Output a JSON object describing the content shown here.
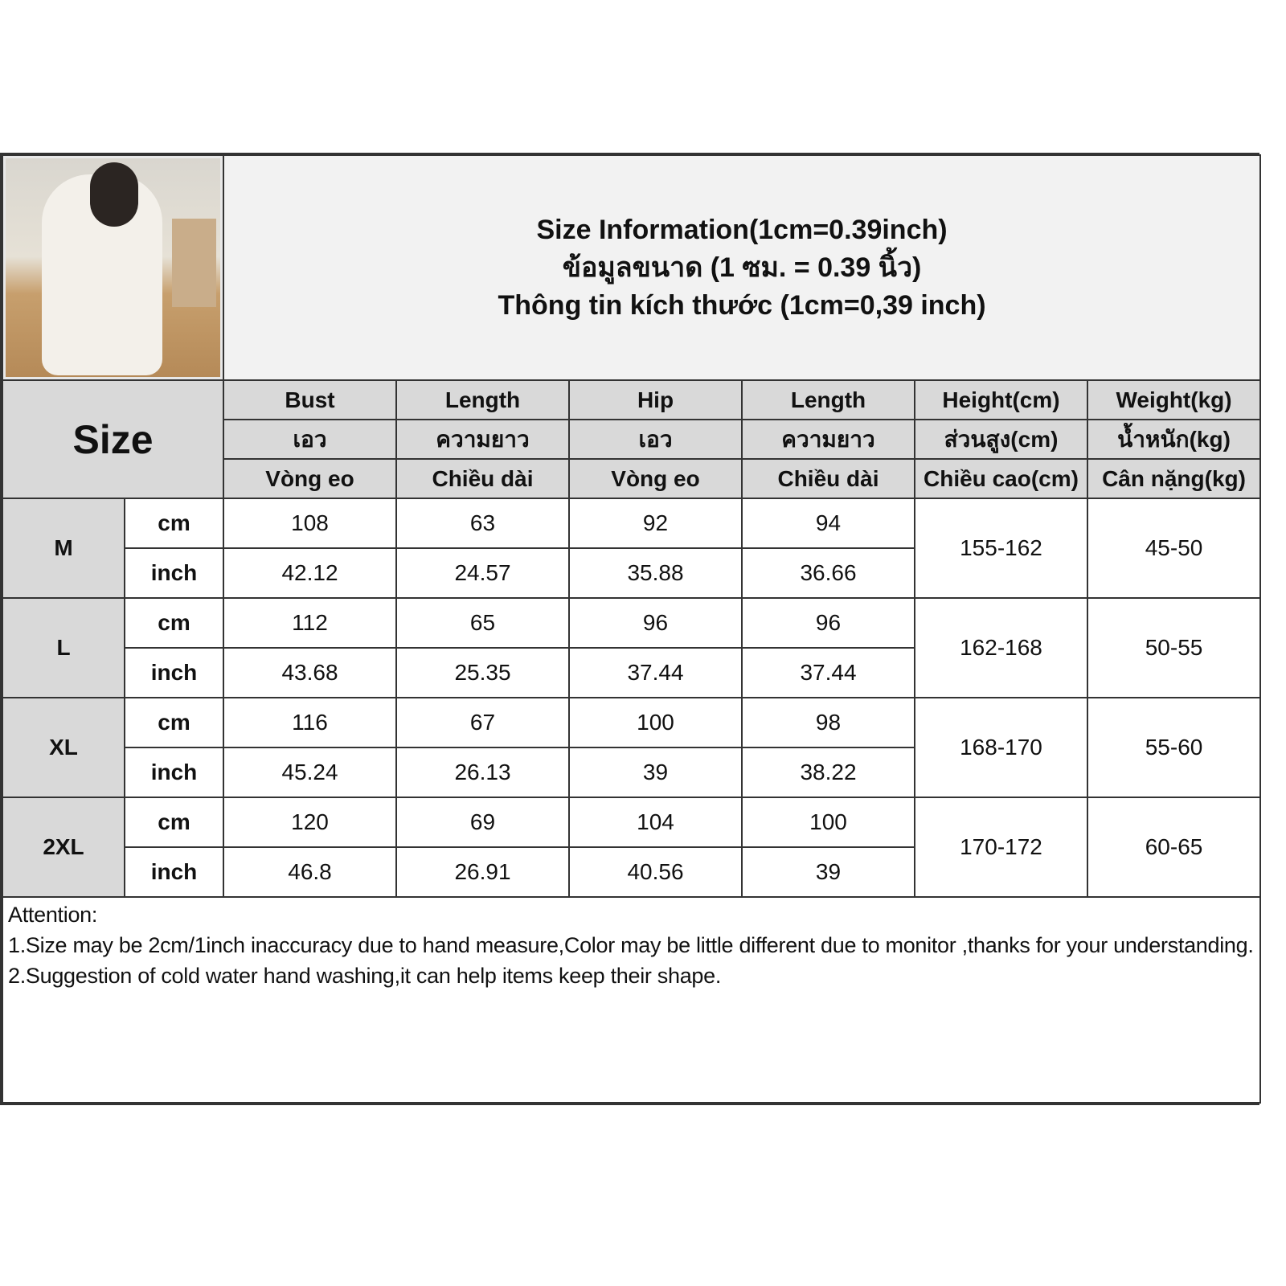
{
  "title": {
    "line1": "Size Information(1cm=0.39inch)",
    "line2": "ข้อมูลขนาด (1 ซม. = 0.39 นิ้ว)",
    "line3": "Thông tin kích thước (1cm=0,39 inch)"
  },
  "size_label": "Size",
  "columns": [
    {
      "en": "Bust",
      "th": "เอว",
      "vi": "Vòng eo"
    },
    {
      "en": "Length",
      "th": "ความยาว",
      "vi": "Chiều dài"
    },
    {
      "en": "Hip",
      "th": "เอว",
      "vi": "Vòng eo"
    },
    {
      "en": "Length",
      "th": "ความยาว",
      "vi": "Chiều dài"
    },
    {
      "en": "Height(cm)",
      "th": "ส่วนสูง(cm)",
      "vi": "Chiều cao(cm)"
    },
    {
      "en": "Weight(kg)",
      "th": "น้ำหนัก(kg)",
      "vi": "Cân nặng(kg)"
    }
  ],
  "units": {
    "cm": "cm",
    "inch": "inch"
  },
  "sizes": [
    {
      "size": "M",
      "cm": [
        "108",
        "63",
        "92",
        "94"
      ],
      "inch": [
        "42.12",
        "24.57",
        "35.88",
        "36.66"
      ],
      "height": "155-162",
      "weight": "45-50"
    },
    {
      "size": "L",
      "cm": [
        "112",
        "65",
        "96",
        "96"
      ],
      "inch": [
        "43.68",
        "25.35",
        "37.44",
        "37.44"
      ],
      "height": "162-168",
      "weight": "50-55"
    },
    {
      "size": "XL",
      "cm": [
        "116",
        "67",
        "100",
        "98"
      ],
      "inch": [
        "45.24",
        "26.13",
        "39",
        "38.22"
      ],
      "height": "168-170",
      "weight": "55-60"
    },
    {
      "size": "2XL",
      "cm": [
        "120",
        "69",
        "104",
        "100"
      ],
      "inch": [
        "46.8",
        "26.91",
        "40.56",
        "39"
      ],
      "height": "170-172",
      "weight": "60-65"
    }
  ],
  "notes": {
    "heading": "Attention:",
    "items": [
      "1.Size may be 2cm/1inch inaccuracy due to hand measure,Color may be little different due to monitor ,thanks for your understanding.",
      "2.Suggestion of cold water hand washing,it can help items keep their shape."
    ]
  }
}
